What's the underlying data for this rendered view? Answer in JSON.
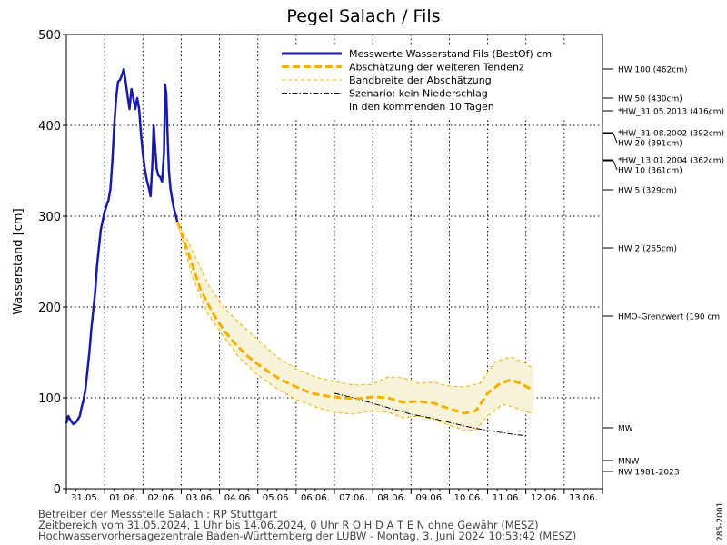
{
  "chart_data": {
    "type": "line",
    "title": "Pegel Salach / Fils",
    "ylabel": "Wasserstand [cm]",
    "ylim": [
      0,
      500
    ],
    "yticks": [
      0,
      100,
      200,
      300,
      400,
      500
    ],
    "xlim": [
      0,
      14
    ],
    "categories": [
      "31.05.",
      "01.06.",
      "02.06.",
      "03.06.",
      "04.06.",
      "05.06.",
      "06.06.",
      "07.06.",
      "08.06.",
      "09.06.",
      "10.06.",
      "11.06.",
      "12.06.",
      "13.06."
    ],
    "grid": true,
    "legend_position": "top-right",
    "legend": [
      {
        "label": "Messwerte Wasserstand Fils   (BestOf)   cm",
        "style": "solid",
        "color": "#1a1aa8"
      },
      {
        "label": "Abschätzung der weiteren Tendenz",
        "style": "dashed",
        "color": "#f0b000"
      },
      {
        "label": "Bandbreite der Abschätzung",
        "style": "thin-dashed",
        "color": "#f0b000"
      },
      {
        "label": "Szenario: kein Niederschlag",
        "style": "dashdot",
        "color": "#000000"
      },
      {
        "label": "in den kommenden 10 Tagen",
        "style": "none",
        "color": "#000000"
      }
    ],
    "series": [
      {
        "name": "Messwerte Wasserstand Fils   (BestOf)   cm",
        "color": "#1a1aa8",
        "points": [
          [
            0.0,
            72
          ],
          [
            0.05,
            80
          ],
          [
            0.1,
            76
          ],
          [
            0.18,
            71
          ],
          [
            0.25,
            73
          ],
          [
            0.3,
            76
          ],
          [
            0.35,
            80
          ],
          [
            0.4,
            90
          ],
          [
            0.45,
            98
          ],
          [
            0.5,
            110
          ],
          [
            0.55,
            130
          ],
          [
            0.6,
            150
          ],
          [
            0.65,
            175
          ],
          [
            0.7,
            195
          ],
          [
            0.75,
            215
          ],
          [
            0.8,
            245
          ],
          [
            0.85,
            265
          ],
          [
            0.9,
            285
          ],
          [
            0.95,
            295
          ],
          [
            1.0,
            305
          ],
          [
            1.05,
            312
          ],
          [
            1.1,
            318
          ],
          [
            1.15,
            330
          ],
          [
            1.2,
            360
          ],
          [
            1.25,
            400
          ],
          [
            1.3,
            430
          ],
          [
            1.35,
            448
          ],
          [
            1.4,
            450
          ],
          [
            1.45,
            455
          ],
          [
            1.5,
            462
          ],
          [
            1.55,
            448
          ],
          [
            1.6,
            432
          ],
          [
            1.65,
            418
          ],
          [
            1.7,
            440
          ],
          [
            1.75,
            430
          ],
          [
            1.8,
            418
          ],
          [
            1.85,
            430
          ],
          [
            1.9,
            418
          ],
          [
            1.95,
            390
          ],
          [
            2.0,
            368
          ],
          [
            2.05,
            352
          ],
          [
            2.1,
            340
          ],
          [
            2.15,
            332
          ],
          [
            2.2,
            322
          ],
          [
            2.25,
            360
          ],
          [
            2.28,
            400
          ],
          [
            2.32,
            375
          ],
          [
            2.36,
            352
          ],
          [
            2.4,
            345
          ],
          [
            2.45,
            343
          ],
          [
            2.5,
            338
          ],
          [
            2.55,
            370
          ],
          [
            2.58,
            445
          ],
          [
            2.61,
            435
          ],
          [
            2.64,
            392
          ],
          [
            2.68,
            350
          ],
          [
            2.72,
            330
          ],
          [
            2.76,
            320
          ],
          [
            2.8,
            310
          ],
          [
            2.85,
            302
          ],
          [
            2.9,
            294
          ]
        ]
      },
      {
        "name": "Abschätzung der weiteren Tendenz",
        "color": "#f0b000",
        "points": [
          [
            2.9,
            294
          ],
          [
            3.1,
            270
          ],
          [
            3.3,
            245
          ],
          [
            3.5,
            220
          ],
          [
            3.7,
            203
          ],
          [
            3.9,
            188
          ],
          [
            4.1,
            175
          ],
          [
            4.4,
            160
          ],
          [
            4.7,
            147
          ],
          [
            5.0,
            137
          ],
          [
            5.3,
            128
          ],
          [
            5.6,
            120
          ],
          [
            6.0,
            112
          ],
          [
            6.4,
            105
          ],
          [
            6.8,
            102
          ],
          [
            7.2,
            100
          ],
          [
            7.6,
            99
          ],
          [
            8.0,
            101
          ],
          [
            8.4,
            100
          ],
          [
            8.8,
            95
          ],
          [
            9.2,
            96
          ],
          [
            9.6,
            94
          ],
          [
            10.0,
            88
          ],
          [
            10.4,
            83
          ],
          [
            10.7,
            86
          ],
          [
            11.0,
            105
          ],
          [
            11.3,
            115
          ],
          [
            11.6,
            120
          ],
          [
            11.9,
            115
          ],
          [
            12.2,
            108
          ]
        ]
      },
      {
        "name": "Bandbreite der Abschätzung (oben)",
        "color": "#f0b000",
        "points": [
          [
            2.9,
            294
          ],
          [
            3.3,
            262
          ],
          [
            3.7,
            225
          ],
          [
            4.1,
            200
          ],
          [
            4.5,
            183
          ],
          [
            5.0,
            164
          ],
          [
            5.5,
            145
          ],
          [
            6.0,
            132
          ],
          [
            6.5,
            123
          ],
          [
            7.0,
            118
          ],
          [
            7.5,
            114
          ],
          [
            8.0,
            115
          ],
          [
            8.4,
            123
          ],
          [
            8.8,
            122
          ],
          [
            9.2,
            116
          ],
          [
            9.6,
            117
          ],
          [
            10.0,
            113
          ],
          [
            10.4,
            112
          ],
          [
            10.8,
            116
          ],
          [
            11.2,
            140
          ],
          [
            11.6,
            145
          ],
          [
            12.0,
            138
          ],
          [
            12.2,
            132
          ]
        ]
      },
      {
        "name": "Bandbreite der Abschätzung (unten)",
        "color": "#f0b000",
        "points": [
          [
            2.9,
            294
          ],
          [
            3.3,
            232
          ],
          [
            3.7,
            192
          ],
          [
            4.1,
            168
          ],
          [
            4.5,
            145
          ],
          [
            5.0,
            125
          ],
          [
            5.5,
            110
          ],
          [
            6.0,
            98
          ],
          [
            6.5,
            90
          ],
          [
            7.0,
            84
          ],
          [
            7.5,
            82
          ],
          [
            8.0,
            86
          ],
          [
            8.4,
            84
          ],
          [
            8.8,
            78
          ],
          [
            9.2,
            80
          ],
          [
            9.6,
            76
          ],
          [
            10.0,
            70
          ],
          [
            10.4,
            64
          ],
          [
            10.7,
            65
          ],
          [
            11.0,
            80
          ],
          [
            11.4,
            93
          ],
          [
            11.8,
            88
          ],
          [
            12.2,
            82
          ]
        ]
      },
      {
        "name": "Szenario: kein Niederschlag",
        "color": "#000000",
        "points": [
          [
            7.0,
            105
          ],
          [
            7.5,
            100
          ],
          [
            8.0,
            94
          ],
          [
            8.5,
            88
          ],
          [
            9.0,
            82
          ],
          [
            9.5,
            78
          ],
          [
            10.0,
            73
          ],
          [
            10.5,
            68
          ],
          [
            11.0,
            64
          ],
          [
            11.5,
            61
          ],
          [
            12.0,
            58
          ]
        ]
      }
    ],
    "reference_lines": [
      {
        "label": "HW 100 (462cm)",
        "value": 462
      },
      {
        "label": "HW 50 (430cm)",
        "value": 430
      },
      {
        "label": "*HW_31.05.2013 (416cm)",
        "value": 416
      },
      {
        "label": "*HW_31.08.2002 (392cm)",
        "value": 392
      },
      {
        "label": "HW 20 (391cm)",
        "value": 391
      },
      {
        "label": "*HW_13.01.2004 (362cm)",
        "value": 362
      },
      {
        "label": "HW 10 (361cm)",
        "value": 361
      },
      {
        "label": "HW 5 (329cm)",
        "value": 329
      },
      {
        "label": "HW 2 (265cm)",
        "value": 265
      },
      {
        "label": "HMO-Grenzwert (190 cm",
        "value": 190
      },
      {
        "label": "MW",
        "value": 67
      },
      {
        "label": "MNW",
        "value": 31
      },
      {
        "label": "NW 1981-2023",
        "value": 19
      }
    ]
  },
  "footer": {
    "line1": "Betreiber der Messstelle Salach : RP Stuttgart",
    "line2": "Zeitbereich vom 31.05.2024, 1 Uhr bis 14.06.2024, 0 Uhr    R O H D A T E N ohne Gewähr (MESZ)",
    "line3": "Hochwasservorhersagezentrale Baden-Württemberg der LUBW - Montag, 3. Juni 2024 10:53:42 (MESZ)",
    "code": "285-2001"
  }
}
